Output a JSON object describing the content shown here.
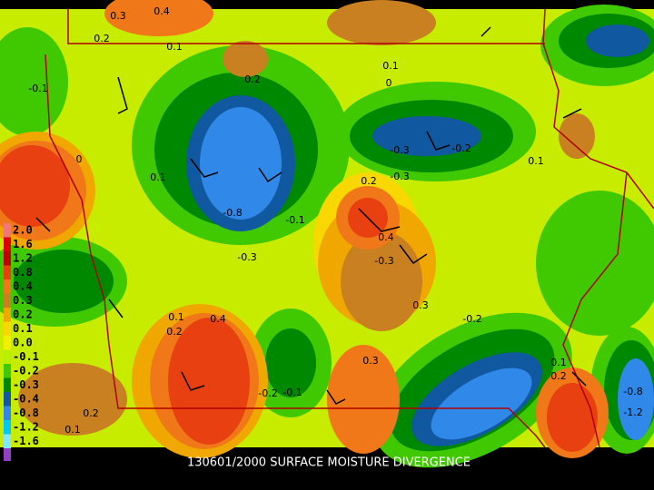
{
  "caption": "130601/2000 SURFACE MOISTURE DIVERGENCE",
  "legend": {
    "labels": [
      "2.0",
      "1.6",
      "1.2",
      "0.8",
      "0.4",
      "0.3",
      "0.2",
      "0.1",
      "0.0",
      "-0.1",
      "-0.2",
      "-0.3",
      "-0.4",
      "-0.8",
      "-1.2",
      "-1.6"
    ],
    "colors": [
      "#f07878",
      "#e00000",
      "#c00000",
      "#e84010",
      "#f07818",
      "#c88020",
      "#f0a800",
      "#f8d800",
      "#f0f000",
      "#b8f000",
      "#40c800",
      "#008800",
      "#1058a0",
      "#3088e8",
      "#00c8f0",
      "#80e8ff"
    ]
  },
  "contour_labels": [
    "0.3",
    "0.4",
    "0.2",
    "0.1",
    "0.2",
    "0.1",
    "0",
    "-0.1",
    "0",
    "0.1",
    "-0.8",
    "-0.1",
    "-0.3",
    "0.2",
    "-0.3",
    "-0.2",
    "0.4",
    "-0.3",
    "0.3",
    "0.1",
    "0.4",
    "0.2",
    "0.3",
    "-0.2",
    "0.2",
    "0.1",
    "-0.1",
    "-0.2",
    "0.1",
    "-0.8",
    "-1.2",
    "0.2",
    "0.1",
    "-0.3"
  ]
}
